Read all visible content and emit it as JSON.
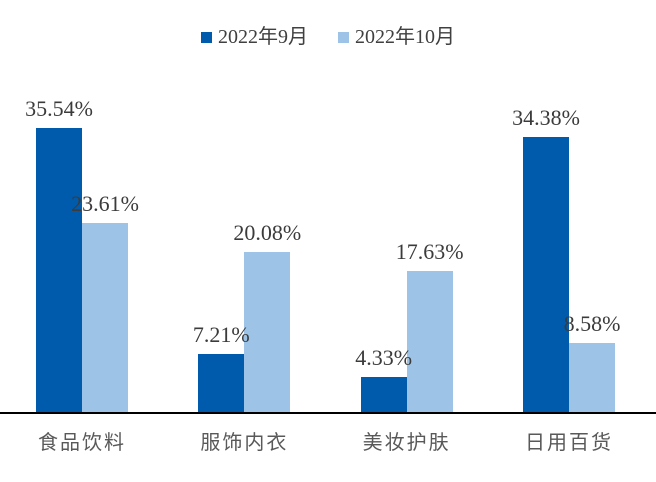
{
  "chart_data": {
    "type": "bar",
    "title": "",
    "categories": [
      "食品饮料",
      "服饰内衣",
      "美妆护肤",
      "日用百货"
    ],
    "series": [
      {
        "name": "2022年9月",
        "color": "#005BAC",
        "values": [
          35.54,
          7.21,
          4.33,
          34.38
        ],
        "labels": [
          "35.54%",
          "7.21%",
          "4.33%",
          "34.38%"
        ]
      },
      {
        "name": "2022年10月",
        "color": "#9DC3E6",
        "values": [
          23.61,
          20.08,
          17.63,
          8.58
        ],
        "labels": [
          "23.61%",
          "20.08%",
          "17.63%",
          "8.58%"
        ]
      }
    ],
    "xlabel": "",
    "ylabel": "",
    "ylim": [
      0,
      40
    ],
    "value_suffix": "%",
    "grid": false,
    "legend_position": "top",
    "axis_line_color": "#000000",
    "value_label_color": "#3B3B3B",
    "category_label_color": "#595959"
  }
}
